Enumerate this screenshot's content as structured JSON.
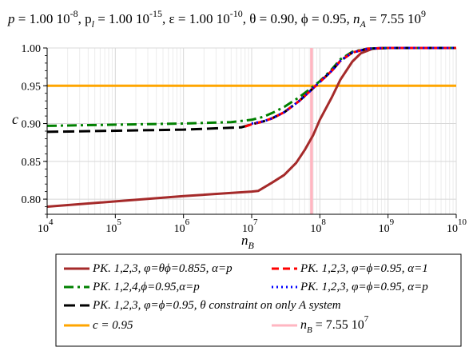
{
  "header": {
    "p_lbl": "p",
    "p_val": " = 1.00 10",
    "p_exp": "-8",
    "pl_lbl": ", p",
    "pl_sub": "l",
    "pl_val": " = 1.00 10",
    "pl_exp": "-15",
    "eps": ", ε = 1.00 10",
    "eps_exp": "-10",
    "theta": ", θ = 0.90, ϕ = 0.95, ",
    "na_lbl": "n",
    "na_sub": "A",
    "na_val": " = 7.55 10",
    "na_exp": "9"
  },
  "colors": {
    "red_dark": "#a52a2a",
    "red": "#ff0000",
    "green": "#008000",
    "blue": "#0000ff",
    "black": "#000000",
    "orange": "#ffa500",
    "pink": "#ffb6c1",
    "grid": "#d8d8d8"
  },
  "chart_data": {
    "type": "line",
    "x_scale": "log",
    "xlim": [
      10000,
      10000000000
    ],
    "ylim": [
      0.78,
      1.0
    ],
    "grid": true,
    "legend_placement": "bottom",
    "xlabel_main": "n",
    "xlabel_sub": "B",
    "ylabel": "c",
    "x_ticks": [
      {
        "base": "10",
        "exp": "4"
      },
      {
        "base": "10",
        "exp": "5"
      },
      {
        "base": "10",
        "exp": "6"
      },
      {
        "base": "10",
        "exp": "7"
      },
      {
        "base": "10",
        "exp": "8"
      },
      {
        "base": "10",
        "exp": "9"
      },
      {
        "base": "10",
        "exp": "10"
      }
    ],
    "y_ticks": [
      "0.80",
      "0.85",
      "0.90",
      "0.95",
      "1.00"
    ],
    "series": [
      {
        "name": "PK. 1,2,3, φ=θϕ=0.855, α=p",
        "color": "#a52a2a",
        "dash": "solid",
        "x": [
          10000,
          100000,
          1000000,
          10000000,
          12500000,
          20000000,
          30000000,
          45000000,
          60000000,
          80000000,
          100000000,
          150000000,
          200000000,
          300000000,
          400000000,
          600000000,
          1000000000,
          10000000000
        ],
        "y": [
          0.79,
          0.797,
          0.804,
          0.81,
          0.811,
          0.822,
          0.832,
          0.848,
          0.865,
          0.885,
          0.905,
          0.935,
          0.958,
          0.982,
          0.993,
          0.999,
          1.0,
          1.0
        ]
      },
      {
        "name": "PK. 1,2,4,ϕ=0.95,α=p",
        "color": "#008000",
        "dash": "dashdot",
        "x": [
          10000,
          1000000,
          5000000,
          10000000,
          15000000,
          20000000,
          30000000,
          50000000,
          70000000,
          100000000,
          150000000,
          200000000,
          300000000,
          500000000,
          1000000000,
          10000000000
        ],
        "y": [
          0.897,
          0.9,
          0.902,
          0.905,
          0.909,
          0.914,
          0.922,
          0.935,
          0.945,
          0.956,
          0.972,
          0.985,
          0.995,
          0.999,
          1.0,
          1.0
        ]
      },
      {
        "name": "PK. 1,2,3, φ=ϕ=0.95, θ constraint on only A system",
        "color": "#000000",
        "dash": "longdash",
        "x": [
          10000,
          1000000,
          7000000,
          10000000,
          15000000,
          20000000,
          30000000,
          50000000,
          70000000,
          100000000,
          150000000,
          200000000,
          300000000,
          500000000,
          1000000000,
          10000000000
        ],
        "y": [
          0.889,
          0.892,
          0.895,
          0.899,
          0.903,
          0.907,
          0.915,
          0.93,
          0.942,
          0.955,
          0.97,
          0.983,
          0.994,
          0.999,
          1.0,
          1.0
        ]
      },
      {
        "name": "PK. 1,2,3, φ=ϕ=0.95, α=1",
        "color": "#ff0000",
        "dash": "dash",
        "x": [
          8000000,
          10000000,
          15000000,
          20000000,
          30000000,
          50000000,
          70000000,
          100000000,
          150000000,
          200000000,
          300000000,
          500000000,
          1000000000,
          10000000000
        ],
        "y": [
          0.896,
          0.899,
          0.903,
          0.907,
          0.915,
          0.93,
          0.942,
          0.955,
          0.97,
          0.983,
          0.994,
          0.999,
          1.0,
          1.0
        ]
      },
      {
        "name": "PK. 1,2,3, φ=ϕ=0.95, α=p",
        "color": "#0000ff",
        "dash": "dot",
        "x": [
          10000000,
          15000000,
          20000000,
          30000000,
          50000000,
          70000000,
          100000000,
          150000000,
          200000000,
          300000000,
          500000000,
          1000000000,
          10000000000
        ],
        "y": [
          0.9,
          0.903,
          0.907,
          0.915,
          0.93,
          0.942,
          0.955,
          0.97,
          0.983,
          0.994,
          0.999,
          1.0,
          1.0
        ]
      },
      {
        "name": "c = 0.95",
        "color": "#ffa500",
        "dash": "solid",
        "x": [
          10000,
          10000000000
        ],
        "y": [
          0.95,
          0.95
        ]
      },
      {
        "name": "n_B = 7.55 10^7",
        "color": "#ffb6c1",
        "dash": "solid",
        "vertical": true,
        "x": [
          75500000,
          75500000
        ],
        "y": [
          0.78,
          1.0
        ]
      }
    ],
    "legend": {
      "rows": [
        [
          {
            "type": "text",
            "color": "#a52a2a",
            "dash": "solid",
            "label": "PK. 1,2,3, φ=θϕ=0.855, α=p"
          },
          {
            "type": "text",
            "color": "#ff0000",
            "dash": "dash",
            "label": "PK. 1,2,3, φ=ϕ=0.95, α=1"
          }
        ],
        [
          {
            "type": "text",
            "color": "#008000",
            "dash": "dashdot",
            "label": "PK. 1,2,4,ϕ=0.95,α=p"
          },
          {
            "type": "text",
            "color": "#0000ff",
            "dash": "dot",
            "label": "PK. 1,2,3, φ=ϕ=0.95, α=p"
          }
        ],
        [
          {
            "type": "text",
            "color": "#000000",
            "dash": "longdash",
            "label": "PK. 1,2,3, φ=ϕ=0.95, θ constraint on only A system"
          }
        ],
        [
          {
            "type": "text",
            "color": "#ffa500",
            "dash": "solid",
            "label": "c = 0.95"
          },
          {
            "type": "nb",
            "color": "#ffb6c1",
            "dash": "solid",
            "main": "n",
            "sub": "B",
            "val": " = 7.55 10",
            "exp": "7"
          }
        ]
      ]
    }
  }
}
